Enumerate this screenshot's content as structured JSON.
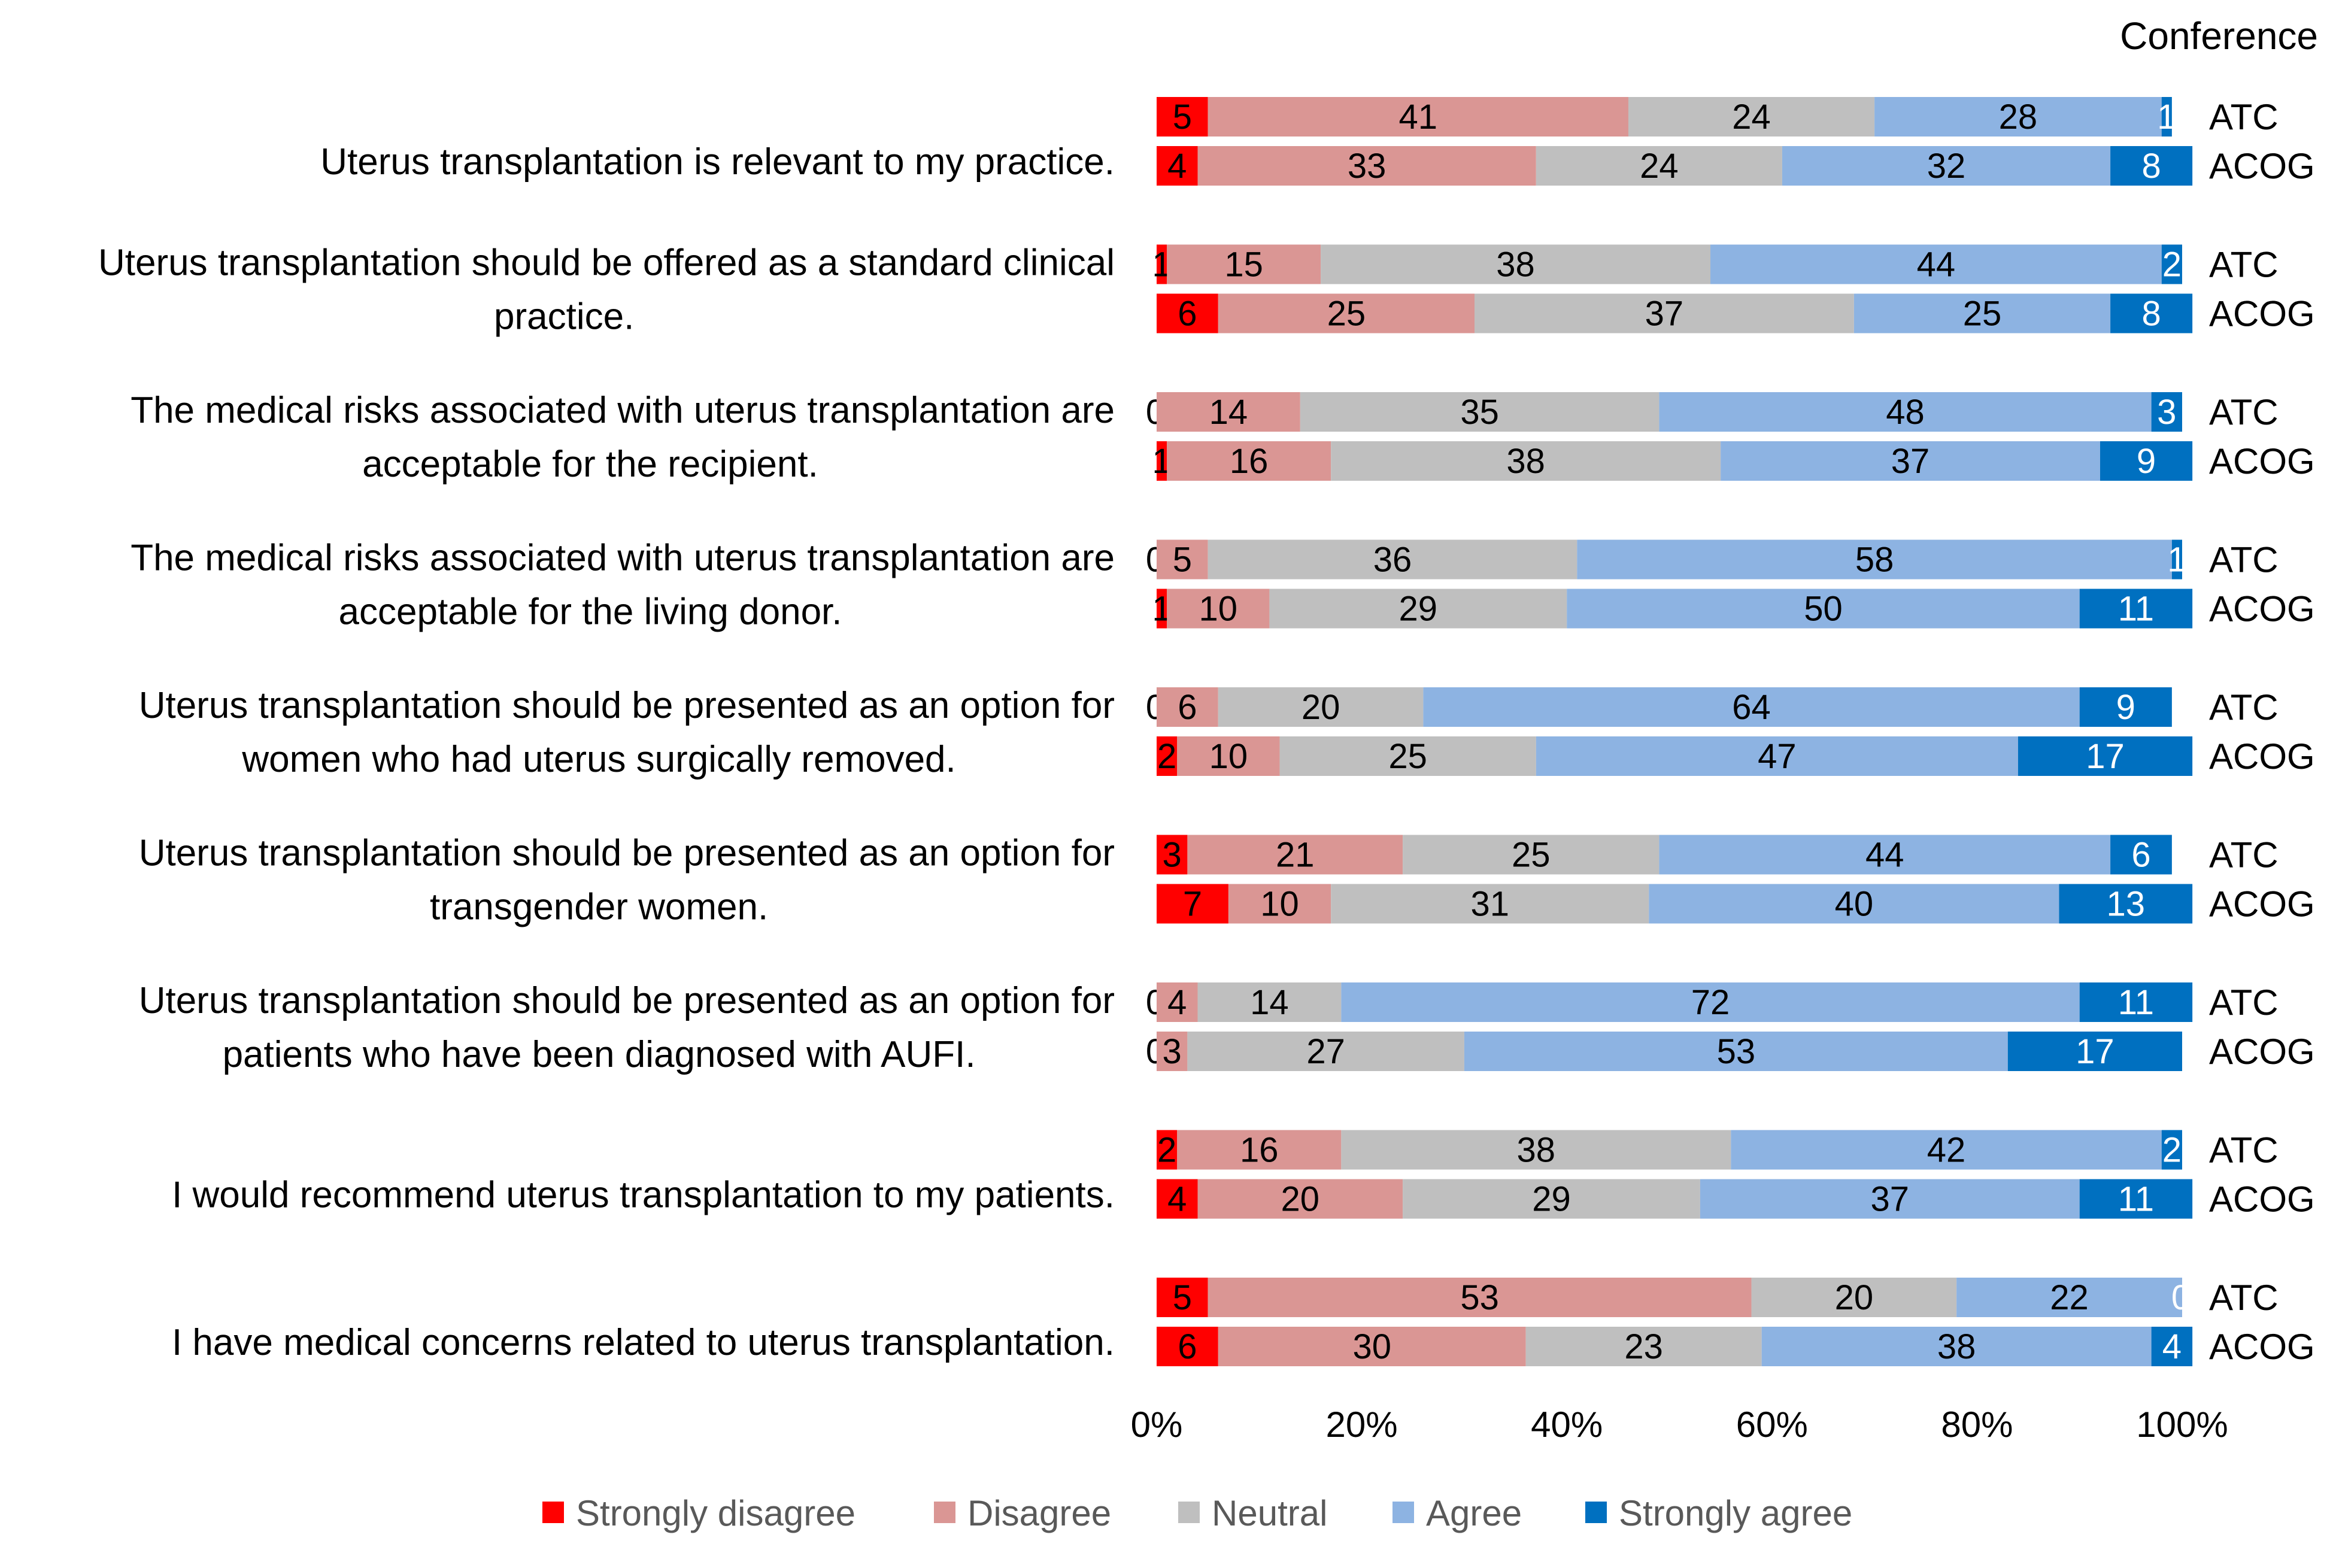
{
  "chart_data": {
    "type": "stacked-bar-horizontal-100",
    "header": "Conference",
    "series_names": [
      "Strongly disagree",
      "Disagree",
      "Neutral",
      "Agree",
      "Strongly agree"
    ],
    "colors": [
      "#ff0000",
      "#da9694",
      "#bfbfbf",
      "#8db3e2",
      "#0070c0"
    ],
    "x_ticks": [
      "0%",
      "20%",
      "40%",
      "60%",
      "80%",
      "100%"
    ],
    "xlim": [
      0,
      100
    ],
    "questions": [
      {
        "label_lines": [
          "Uterus transplantation is relevant to my practice."
        ],
        "groups": [
          {
            "name": "ATC",
            "values": [
              5,
              41,
              24,
              28,
              1
            ]
          },
          {
            "name": "ACOG",
            "values": [
              4,
              33,
              24,
              32,
              8
            ]
          }
        ]
      },
      {
        "label_lines": [
          "Uterus transplantation should be offered as a standard clinical",
          "practice."
        ],
        "groups": [
          {
            "name": "ATC",
            "values": [
              1,
              15,
              38,
              44,
              2
            ]
          },
          {
            "name": "ACOG",
            "values": [
              6,
              25,
              37,
              25,
              8
            ]
          }
        ]
      },
      {
        "label_lines": [
          "The medical risks associated with uterus transplantation are",
          "acceptable for the recipient."
        ],
        "groups": [
          {
            "name": "ATC",
            "values": [
              0,
              14,
              35,
              48,
              3
            ]
          },
          {
            "name": "ACOG",
            "values": [
              1,
              16,
              38,
              37,
              9
            ]
          }
        ]
      },
      {
        "label_lines": [
          "The medical risks associated with uterus transplantation are",
          "acceptable for the living donor."
        ],
        "groups": [
          {
            "name": "ATC",
            "values": [
              0,
              5,
              36,
              58,
              1
            ]
          },
          {
            "name": "ACOG",
            "values": [
              1,
              10,
              29,
              50,
              11
            ]
          }
        ]
      },
      {
        "label_lines": [
          "Uterus transplantation should be presented as an option for",
          "women who had uterus surgically removed."
        ],
        "groups": [
          {
            "name": "ATC",
            "values": [
              0,
              6,
              20,
              64,
              9
            ]
          },
          {
            "name": "ACOG",
            "values": [
              2,
              10,
              25,
              47,
              17
            ]
          }
        ]
      },
      {
        "label_lines": [
          "Uterus transplantation should be presented as an option for",
          "transgender women."
        ],
        "groups": [
          {
            "name": "ATC",
            "values": [
              3,
              21,
              25,
              44,
              6
            ]
          },
          {
            "name": "ACOG",
            "values": [
              7,
              10,
              31,
              40,
              13
            ]
          }
        ]
      },
      {
        "label_lines": [
          "Uterus transplantation should be presented as an option for",
          "patients who have been diagnosed with AUFI."
        ],
        "groups": [
          {
            "name": "ATC",
            "values": [
              0,
              4,
              14,
              72,
              11
            ]
          },
          {
            "name": "ACOG",
            "values": [
              0,
              3,
              27,
              53,
              17
            ]
          }
        ]
      },
      {
        "label_lines": [
          "I would recommend uterus transplantation to my patients."
        ],
        "groups": [
          {
            "name": "ATC",
            "values": [
              2,
              16,
              38,
              42,
              2
            ]
          },
          {
            "name": "ACOG",
            "values": [
              4,
              20,
              29,
              37,
              11
            ]
          }
        ]
      },
      {
        "label_lines": [
          "I have medical concerns related to uterus transplantation."
        ],
        "groups": [
          {
            "name": "ATC",
            "values": [
              5,
              53,
              20,
              22,
              0
            ]
          },
          {
            "name": "ACOG",
            "values": [
              6,
              30,
              23,
              38,
              4
            ]
          }
        ]
      }
    ]
  }
}
